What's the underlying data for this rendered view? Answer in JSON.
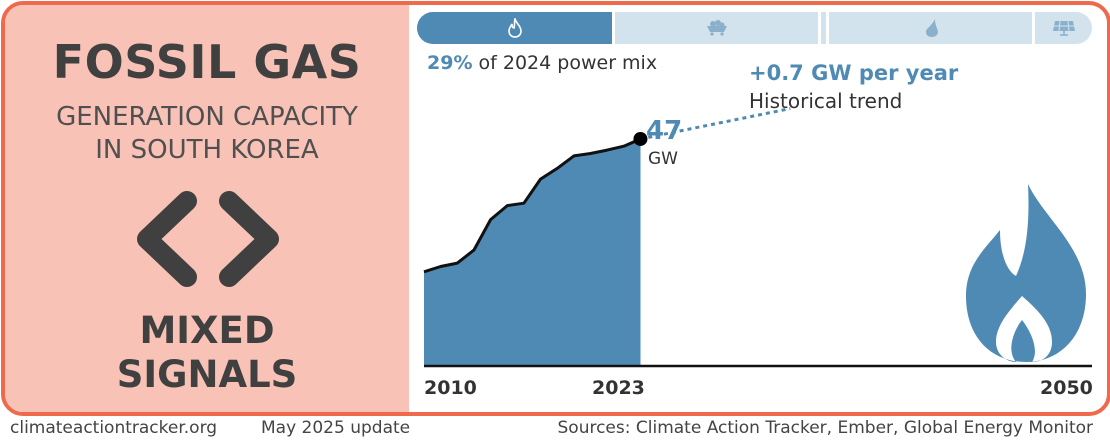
{
  "title": "FOSSIL GAS",
  "subtitle_line1": "GENERATION CAPACITY",
  "subtitle_line2": "IN SOUTH KOREA",
  "status_line1": "MIXED",
  "status_line2": "SIGNALS",
  "fuel_bar": {
    "segments": [
      {
        "icon": "flame-icon",
        "active": true
      },
      {
        "icon": "coal-cart-icon",
        "active": false
      },
      {
        "icon": "oil-icon",
        "active": false
      },
      {
        "icon": "water-drop-icon",
        "active": false
      },
      {
        "icon": "solar-panel-icon",
        "active": false
      }
    ]
  },
  "share": {
    "percent": "29%",
    "text": "of 2024 power mix"
  },
  "trend": {
    "value": "+0.7 GW per year",
    "label": "Historical trend"
  },
  "capacity": {
    "value": "47",
    "unit": "GW"
  },
  "chart_data": {
    "type": "area",
    "x": [
      2010,
      2011,
      2012,
      2013,
      2014,
      2015,
      2016,
      2017,
      2018,
      2019,
      2020,
      2021,
      2022,
      2023
    ],
    "y": [
      19.5,
      20.6,
      21.3,
      24.0,
      30.3,
      33.2,
      33.7,
      38.7,
      40.9,
      43.5,
      44.0,
      44.7,
      45.5,
      47.0
    ],
    "trend_end_x": 2032,
    "trend_end_y": 53.3,
    "xlim": [
      2010,
      2050
    ],
    "ylim": [
      0,
      53
    ],
    "x_ticks": [
      "2010",
      "2023",
      "2050"
    ],
    "colors": {
      "fill": "#4f8ab4",
      "line": "#111111",
      "trend": "#4f8ab4"
    }
  },
  "colors": {
    "accent": "#4f8ab4",
    "border": "#ef6a4c",
    "panel": "#f8c2b6",
    "text": "#404040"
  },
  "footer": {
    "site": "climateactiontracker.org",
    "update": "May 2025 update",
    "sources": "Sources: Climate Action Tracker, Ember, Global Energy Monitor"
  }
}
